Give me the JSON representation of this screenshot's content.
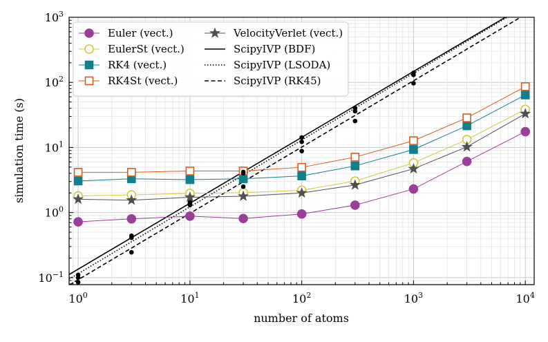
{
  "chart_data": {
    "type": "line",
    "xscale": "log",
    "yscale": "log",
    "xlabel": "number of atoms",
    "ylabel": "simulation time (s)",
    "xlim": [
      0.83,
      12000
    ],
    "ylim": [
      0.078,
      1000
    ],
    "x_ticks": [
      {
        "value": 1,
        "base": "10",
        "exp": "0"
      },
      {
        "value": 10,
        "base": "10",
        "exp": "1"
      },
      {
        "value": 100,
        "base": "10",
        "exp": "2"
      },
      {
        "value": 1000,
        "base": "10",
        "exp": "3"
      },
      {
        "value": 10000,
        "base": "10",
        "exp": "4"
      }
    ],
    "y_ticks": [
      {
        "value": 0.1,
        "base": "10",
        "exp": "−1"
      },
      {
        "value": 1,
        "base": "10",
        "exp": "0"
      },
      {
        "value": 10,
        "base": "10",
        "exp": "1"
      },
      {
        "value": 100,
        "base": "10",
        "exp": "2"
      },
      {
        "value": 1000,
        "base": "10",
        "exp": "3"
      }
    ],
    "grid": true,
    "legend_position": "top-left",
    "x": [
      1,
      3,
      10,
      30,
      100,
      300,
      1000,
      3000,
      10000
    ],
    "series": [
      {
        "name": "Euler (vect.)",
        "color": "#9a3f99",
        "marker": "circle",
        "fill": "filled",
        "values": [
          0.72,
          0.8,
          0.88,
          0.81,
          0.95,
          1.3,
          2.3,
          6.1,
          17.5
        ]
      },
      {
        "name": "EulerSt (vect.)",
        "color": "#d6c53f",
        "marker": "circle",
        "fill": "open",
        "values": [
          1.8,
          1.87,
          1.97,
          2.02,
          2.2,
          3.05,
          5.8,
          13.2,
          38.5
        ]
      },
      {
        "name": "RK4 (vect.)",
        "color": "#117f8c",
        "marker": "square",
        "fill": "filled",
        "values": [
          3.05,
          3.3,
          3.2,
          3.3,
          3.65,
          5.2,
          9.3,
          21.5,
          64
        ]
      },
      {
        "name": "RK4St (vect.)",
        "color": "#d95a1a",
        "marker": "square",
        "fill": "open",
        "values": [
          4.15,
          4.15,
          4.35,
          4.35,
          4.95,
          7.1,
          12.7,
          28.5,
          86
        ]
      },
      {
        "name": "VelocityVerlet (vect.)",
        "color": "#505050",
        "marker": "star",
        "fill": "filled",
        "values": [
          1.6,
          1.55,
          1.72,
          1.78,
          2.0,
          2.65,
          4.7,
          10.2,
          33
        ]
      }
    ],
    "fit_lines": [
      {
        "name": "ScipyIVP (BDF)",
        "style": "solid",
        "a": 0.135,
        "b": 1.0125
      },
      {
        "name": "ScipyIVP (LSODA)",
        "style": "dotted",
        "a": 0.115,
        "b": 1.0266
      },
      {
        "name": "ScipyIVP (RK45)",
        "style": "dashed",
        "a": 0.093,
        "b": 1.0187
      }
    ],
    "scatter_points": [
      [
        1,
        0.085
      ],
      [
        1,
        0.1
      ],
      [
        1,
        0.11
      ],
      [
        3,
        0.245
      ],
      [
        3,
        0.41
      ],
      [
        3,
        0.44
      ],
      [
        10,
        1.3
      ],
      [
        10,
        1.37
      ],
      [
        10,
        1.44
      ],
      [
        30,
        2.5
      ],
      [
        30,
        4.0
      ],
      [
        30,
        4.2
      ],
      [
        100,
        8.8
      ],
      [
        100,
        12.2
      ],
      [
        100,
        14.2
      ],
      [
        300,
        25.5
      ],
      [
        300,
        36.0
      ],
      [
        300,
        40.0
      ],
      [
        1000,
        97
      ],
      [
        1000,
        130
      ],
      [
        1000,
        140
      ]
    ]
  }
}
